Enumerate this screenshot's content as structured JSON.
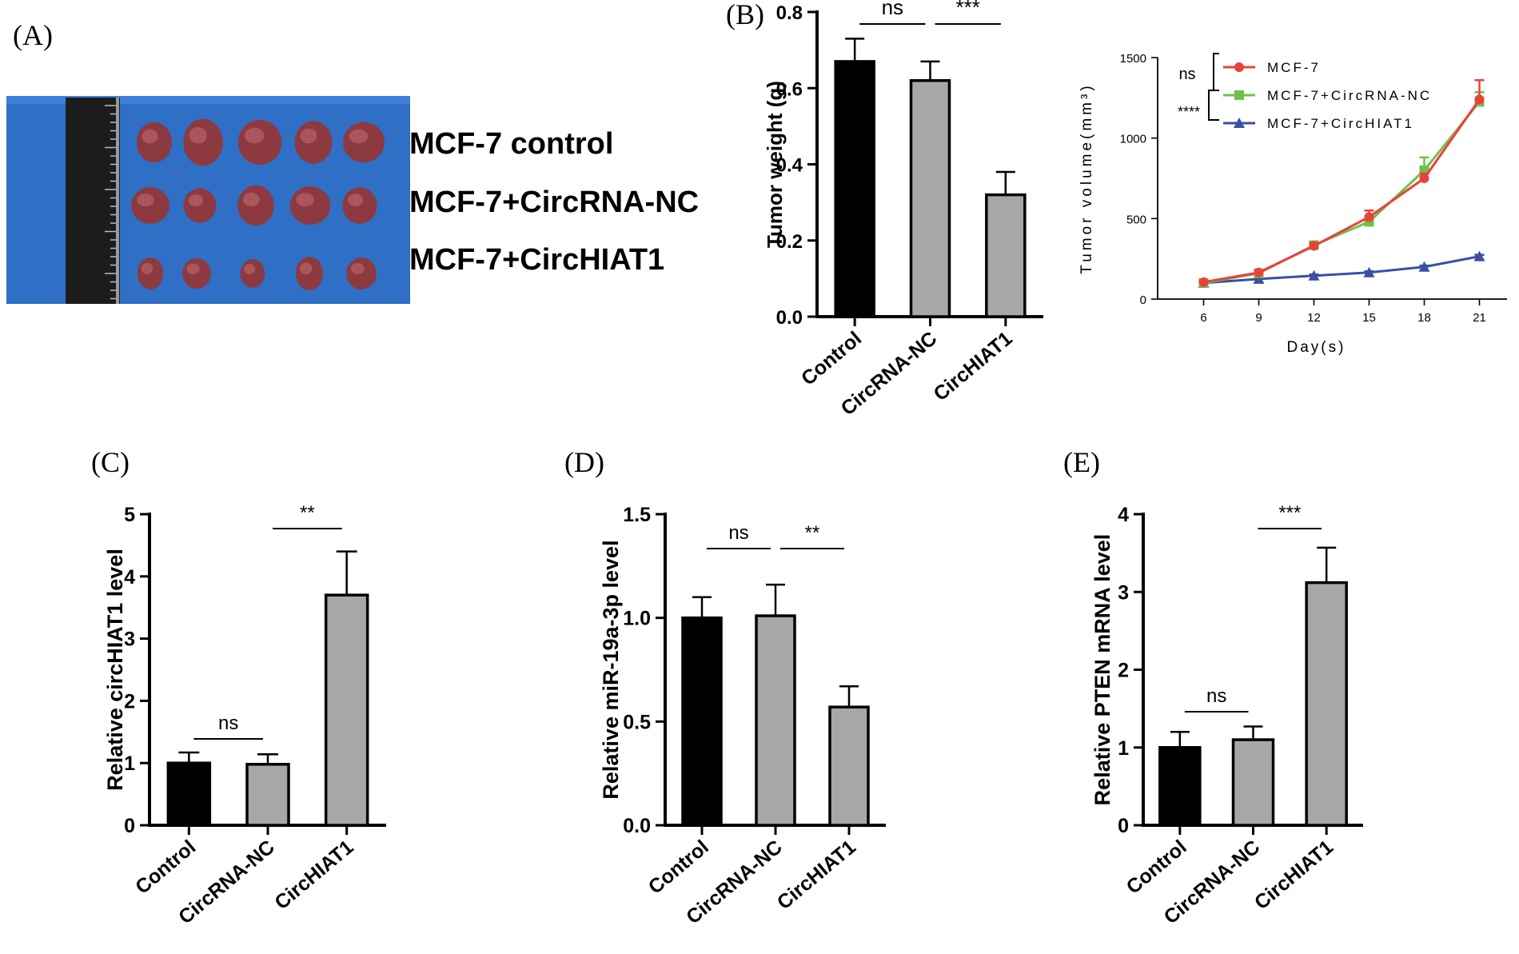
{
  "panel_letters": {
    "a": "(A)",
    "b": "(B)",
    "c": "(C)",
    "d": "(D)",
    "e": "(E)"
  },
  "photo": {
    "labels": [
      "MCF-7 control",
      "MCF-7+CircRNA-NC",
      "MCF-7+CircHIAT1"
    ],
    "colors": {
      "background": "#2f6fc6",
      "ruler": "#1c1c1c",
      "tumor": "#8c3a40"
    }
  },
  "colors": {
    "black_bar": "#000000",
    "gray_bar": "#a7a7a9",
    "red": "#e8423a",
    "green": "#6cc24a",
    "blue": "#3b4fa6"
  },
  "chart_data": [
    {
      "id": "B_weight",
      "type": "bar",
      "title": "",
      "xlabel": "",
      "ylabel": "Tumor weight (g)",
      "categories": [
        "Control",
        "CircRNA-NC",
        "CircHIAT1"
      ],
      "values": [
        0.67,
        0.62,
        0.32
      ],
      "errors": [
        0.06,
        0.05,
        0.06
      ],
      "ylim": [
        0,
        0.8
      ],
      "yticks": [
        0.0,
        0.2,
        0.4,
        0.6,
        0.8
      ],
      "yticklabels": [
        "0.0",
        "0.2",
        "0.4",
        "0.6",
        "0.8"
      ],
      "comparisons": [
        {
          "from": 0,
          "to": 1,
          "label": "ns"
        },
        {
          "from": 1,
          "to": 2,
          "label": "***"
        }
      ]
    },
    {
      "id": "B_volume",
      "type": "line",
      "xlabel": "Day(s)",
      "ylabel": "Tumor volume(mm³)",
      "x": [
        6,
        9,
        12,
        15,
        18,
        21
      ],
      "xlim": [
        3.5,
        22.5
      ],
      "ylim": [
        0,
        1500
      ],
      "yticks": [
        0,
        500,
        1000,
        1500
      ],
      "series": [
        {
          "name": "MCF-7",
          "values": [
            105,
            165,
            330,
            510,
            750,
            1240
          ],
          "errors": [
            10,
            15,
            20,
            40,
            30,
            120
          ]
        },
        {
          "name": "MCF-7+CircRNA-NC",
          "values": [
            100,
            160,
            335,
            480,
            800,
            1225
          ],
          "errors": [
            10,
            15,
            20,
            30,
            80,
            60
          ]
        },
        {
          "name": "MCF-7+CircHIAT1",
          "values": [
            100,
            125,
            145,
            165,
            200,
            265
          ],
          "errors": [
            5,
            5,
            8,
            8,
            8,
            10
          ]
        }
      ],
      "legend_brackets": [
        {
          "label": "ns"
        },
        {
          "label": "****"
        }
      ],
      "legend_position": "top-right"
    },
    {
      "id": "C",
      "type": "bar",
      "ylabel": "Relative circHIAT1 level",
      "categories": [
        "Control",
        "CircRNA-NC",
        "CircHIAT1"
      ],
      "values": [
        1.0,
        0.98,
        3.7
      ],
      "errors": [
        0.17,
        0.16,
        0.7
      ],
      "ylim": [
        0,
        5
      ],
      "yticks": [
        0,
        1,
        2,
        3,
        4,
        5
      ],
      "yticklabels": [
        "0",
        "1",
        "2",
        "3",
        "4",
        "5"
      ],
      "comparisons": [
        {
          "from": 0,
          "to": 1,
          "label": "ns"
        },
        {
          "from": 1,
          "to": 2,
          "label": "**"
        }
      ]
    },
    {
      "id": "D",
      "type": "bar",
      "ylabel": "Relative miR-19a-3p level",
      "categories": [
        "Control",
        "CircRNA-NC",
        "CircHIAT1"
      ],
      "values": [
        1.0,
        1.01,
        0.57
      ],
      "errors": [
        0.1,
        0.15,
        0.1
      ],
      "ylim": [
        0,
        1.5
      ],
      "yticks": [
        0,
        0.5,
        1.0,
        1.5
      ],
      "yticklabels": [
        "0.0",
        "0.5",
        "1.0",
        "1.5"
      ],
      "comparisons": [
        {
          "from": 0,
          "to": 1,
          "label": "ns"
        },
        {
          "from": 1,
          "to": 2,
          "label": "**"
        }
      ]
    },
    {
      "id": "E",
      "type": "bar",
      "ylabel": "Relative PTEN mRNA level",
      "categories": [
        "Control",
        "CircRNA-NC",
        "CircHIAT1"
      ],
      "values": [
        1.0,
        1.1,
        3.12
      ],
      "errors": [
        0.2,
        0.17,
        0.45
      ],
      "ylim": [
        0,
        4
      ],
      "yticks": [
        0,
        1,
        2,
        3,
        4
      ],
      "yticklabels": [
        "0",
        "1",
        "2",
        "3",
        "4"
      ],
      "comparisons": [
        {
          "from": 0,
          "to": 1,
          "label": "ns"
        },
        {
          "from": 1,
          "to": 2,
          "label": "***"
        }
      ]
    }
  ]
}
